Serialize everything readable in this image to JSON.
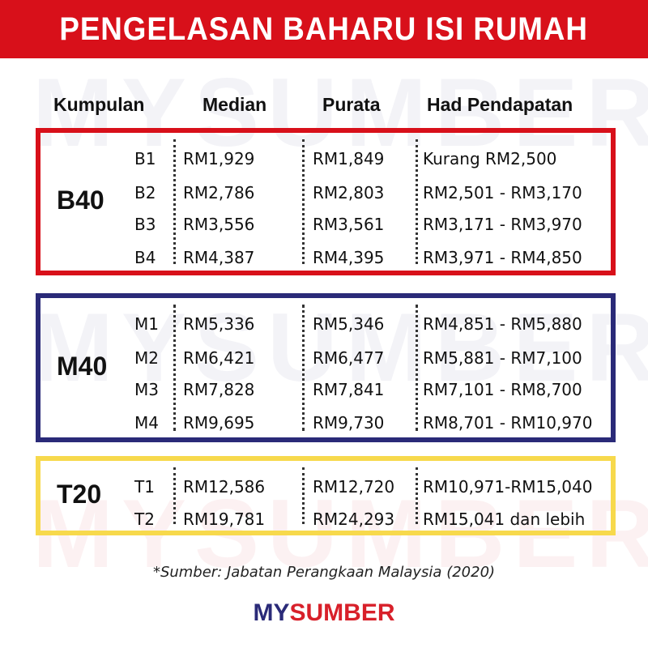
{
  "title": "PENGELASAN BAHARU ISI RUMAH",
  "headers": {
    "group": "Kumpulan",
    "median": "Median",
    "average": "Purata",
    "range": "Had Pendapatan"
  },
  "groups": [
    {
      "name": "B40",
      "color": "#d8101a",
      "rows": [
        {
          "sub": "B1",
          "median": "RM1,929",
          "average": "RM1,849",
          "range": "Kurang RM2,500"
        },
        {
          "sub": "B2",
          "median": "RM2,786",
          "average": "RM2,803",
          "range": "RM2,501 - RM3,170"
        },
        {
          "sub": "B3",
          "median": "RM3,556",
          "average": "RM3,561",
          "range": "RM3,171 - RM3,970"
        },
        {
          "sub": "B4",
          "median": "RM4,387",
          "average": "RM4,395",
          "range": "RM3,971 - RM4,850"
        }
      ]
    },
    {
      "name": "M40",
      "color": "#2a2a78",
      "rows": [
        {
          "sub": "M1",
          "median": "RM5,336",
          "average": "RM5,346",
          "range": "RM4,851 - RM5,880"
        },
        {
          "sub": "M2",
          "median": "RM6,421",
          "average": "RM6,477",
          "range": "RM5,881 - RM7,100"
        },
        {
          "sub": "M3",
          "median": "RM7,828",
          "average": "RM7,841",
          "range": "RM7,101 - RM8,700"
        },
        {
          "sub": "M4",
          "median": "RM9,695",
          "average": "RM9,730",
          "range": "RM8,701 - RM10,970"
        }
      ]
    },
    {
      "name": "T20",
      "color": "#f7d94c",
      "rows": [
        {
          "sub": "T1",
          "median": "RM12,586",
          "average": "RM12,720",
          "range": "RM10,971-RM15,040"
        },
        {
          "sub": "T2",
          "median": "RM19,781",
          "average": "RM24,293",
          "range": "RM15,041 dan lebih"
        }
      ]
    }
  ],
  "footnote": "*Sumber: Jabatan Perangkaan Malaysia (2020)",
  "logo": {
    "part1": "MY",
    "part2": "SUMBER",
    "color1": "#2a2a78",
    "color2": "#d8202a"
  }
}
